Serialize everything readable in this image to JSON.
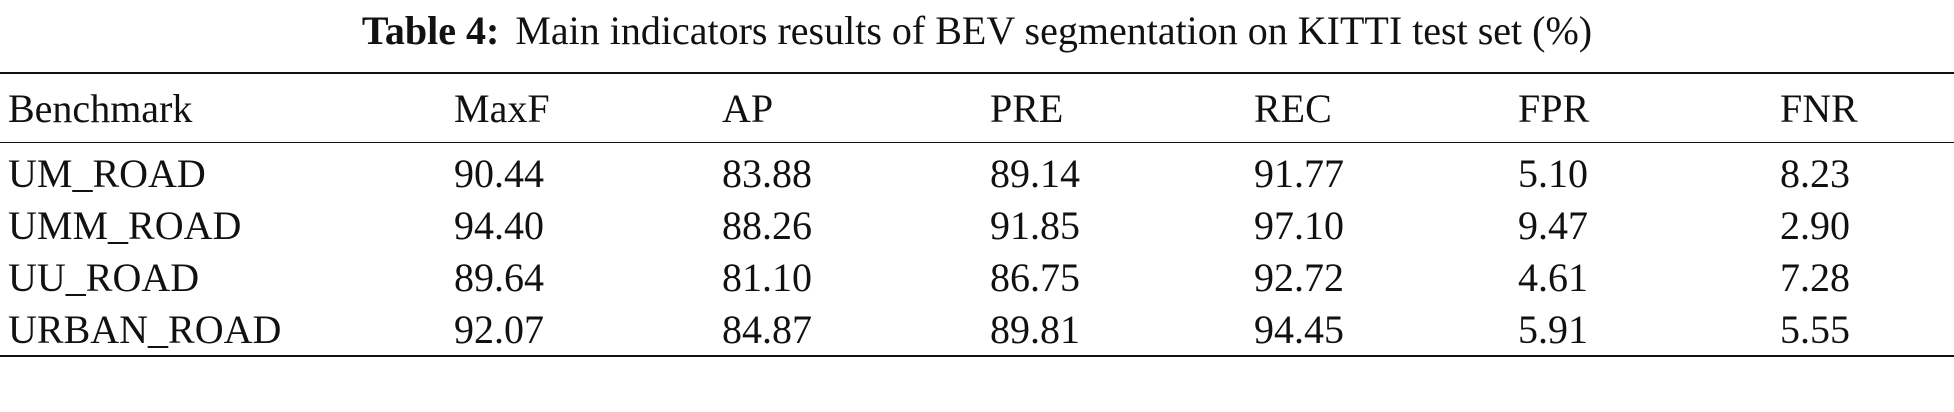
{
  "caption": {
    "label": "Table 4:",
    "text": "Main indicators results of BEV segmentation on KITTI test set (%)"
  },
  "table": {
    "headers": [
      "Benchmark",
      "MaxF",
      "AP",
      "PRE",
      "REC",
      "FPR",
      "FNR"
    ],
    "rows": [
      [
        "UM_ROAD",
        "90.44",
        "83.88",
        "89.14",
        "91.77",
        "5.10",
        "8.23"
      ],
      [
        "UMM_ROAD",
        "94.40",
        "88.26",
        "91.85",
        "97.10",
        "9.47",
        "2.90"
      ],
      [
        "UU_ROAD",
        "89.64",
        "81.10",
        "86.75",
        "92.72",
        "4.61",
        "7.28"
      ],
      [
        "URBAN_ROAD",
        "92.07",
        "84.87",
        "89.81",
        "94.45",
        "5.91",
        "5.55"
      ]
    ]
  }
}
